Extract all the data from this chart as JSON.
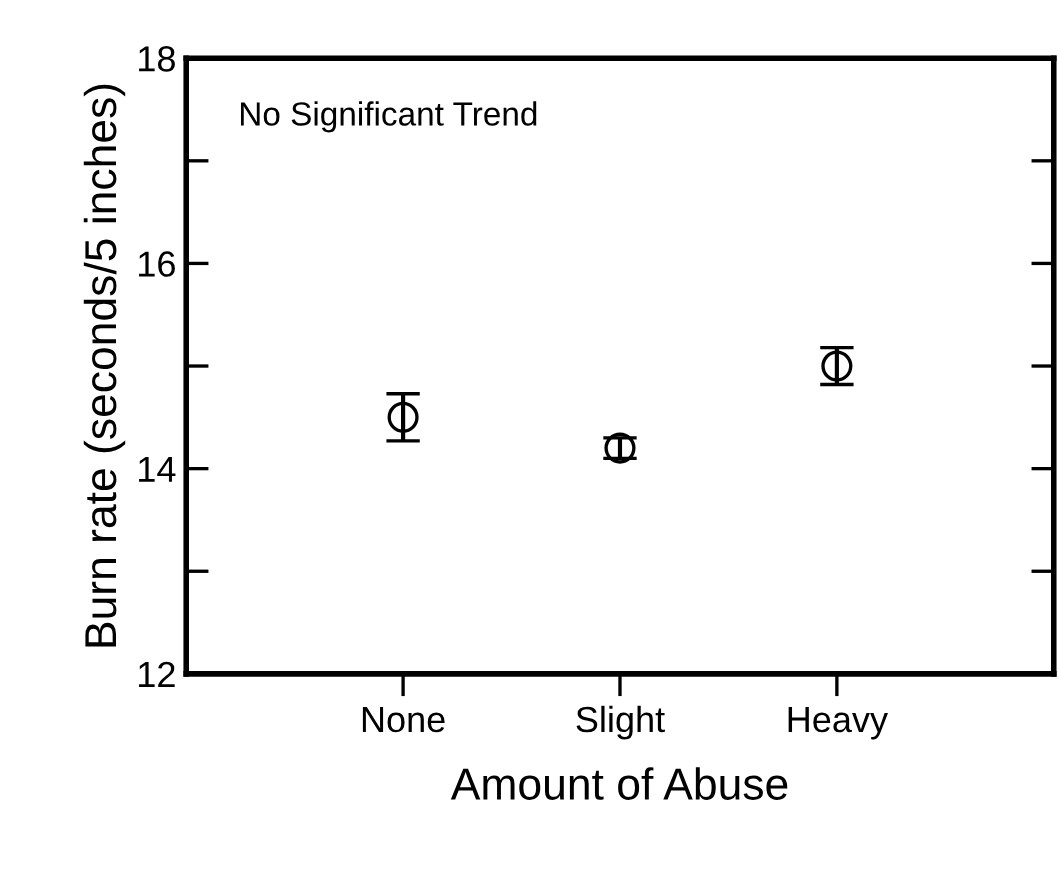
{
  "chart_data": {
    "type": "scatter",
    "xlabel": "Amount of Abuse",
    "ylabel": "Burn rate (seconds/5 inches)",
    "categories": [
      "None",
      "Slight",
      "Heavy"
    ],
    "values": [
      14.5,
      14.2,
      15.0
    ],
    "errors": [
      0.23,
      0.1,
      0.18
    ],
    "color": "#000000",
    "marker": "circle",
    "ylim": [
      12,
      18
    ],
    "yticks": [
      12,
      {
        "value": 13,
        "label": null
      },
      14,
      {
        "value": 15,
        "label": null
      },
      16,
      {
        "value": 17,
        "label": null
      },
      18
    ],
    "annotations": [
      "No Significant Trend"
    ],
    "grid": false,
    "legend": false
  }
}
